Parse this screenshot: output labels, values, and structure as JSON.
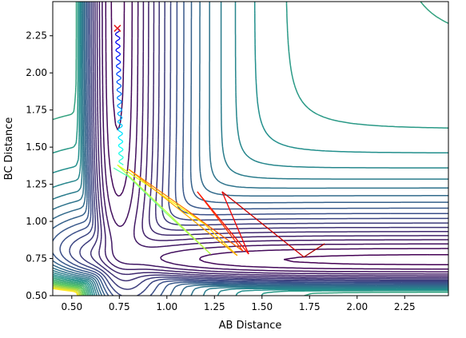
{
  "chart_data": {
    "type": "contour",
    "title": "",
    "xlabel": "AB Distance",
    "ylabel": "BC Distance",
    "xlim": [
      0.4,
      2.48
    ],
    "ylim": [
      0.5,
      2.48
    ],
    "xticks": [
      "0.50",
      "0.75",
      "1.00",
      "1.25",
      "1.50",
      "1.75",
      "2.00",
      "2.25"
    ],
    "yticks": [
      "0.50",
      "0.75",
      "1.00",
      "1.25",
      "1.50",
      "1.75",
      "2.00",
      "2.25"
    ],
    "colormap": [
      "#440154",
      "#3b528b",
      "#21918c",
      "#5ec962",
      "#fde725"
    ],
    "grid": false,
    "legend": "none",
    "start_marker": {
      "symbol": "x",
      "color": "#e31a1c",
      "x": 0.74,
      "y": 2.3
    },
    "trajectory": {
      "description_colormap": "jet",
      "points": [
        [
          0.74,
          2.3
        ],
        [
          0.74,
          2.2
        ],
        [
          0.745,
          2.1
        ],
        [
          0.74,
          2.0
        ],
        [
          0.745,
          1.9
        ],
        [
          0.75,
          1.8
        ],
        [
          0.745,
          1.7
        ],
        [
          0.75,
          1.62
        ],
        [
          0.755,
          1.55
        ],
        [
          0.76,
          1.48
        ],
        [
          0.765,
          1.42
        ],
        [
          0.77,
          1.38
        ],
        [
          0.72,
          1.36
        ],
        [
          0.8,
          1.3
        ],
        [
          1.0,
          1.05
        ],
        [
          1.23,
          0.78
        ],
        [
          0.74,
          1.38
        ],
        [
          0.95,
          1.2
        ],
        [
          1.2,
          0.98
        ],
        [
          1.37,
          0.77
        ],
        [
          0.8,
          1.35
        ],
        [
          1.1,
          1.08
        ],
        [
          1.4,
          0.8
        ],
        [
          1.16,
          1.2
        ],
        [
          1.43,
          0.78
        ],
        [
          1.29,
          1.2
        ],
        [
          1.72,
          0.76
        ],
        [
          1.83,
          0.85
        ]
      ]
    }
  }
}
